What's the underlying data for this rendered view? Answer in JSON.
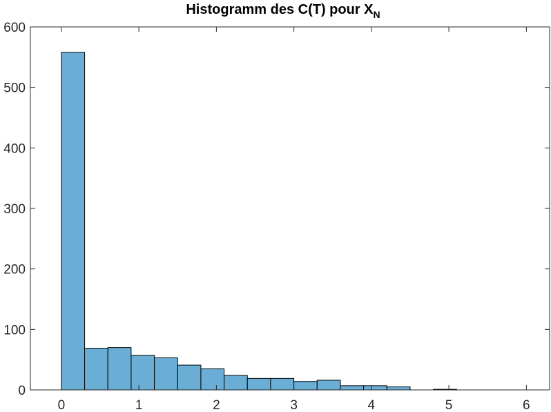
{
  "chart_data": {
    "type": "bar",
    "title": "Histogramm des C(T) pour X",
    "title_subscript": "N",
    "xlabel": "",
    "ylabel": "",
    "xlim": [
      -0.4,
      6.3
    ],
    "ylim": [
      0,
      600
    ],
    "xticks": [
      "0",
      "1",
      "2",
      "3",
      "4",
      "5",
      "6"
    ],
    "yticks": [
      "0",
      "100",
      "200",
      "300",
      "400",
      "500",
      "600"
    ],
    "bin_edges": [
      0,
      0.3,
      0.6,
      0.9,
      1.2,
      1.5,
      1.8,
      2.1,
      2.4,
      2.7,
      3.0,
      3.3,
      3.6,
      3.9,
      4.2,
      4.5,
      4.8,
      5.1
    ],
    "values": [
      558,
      69,
      70,
      57,
      53,
      41,
      35,
      24,
      19,
      19,
      14,
      16,
      7,
      7,
      5,
      0,
      1
    ],
    "grid": false,
    "bar_color": "#6aaed6",
    "edge_color": "#000000",
    "axis_color": "#262626"
  }
}
